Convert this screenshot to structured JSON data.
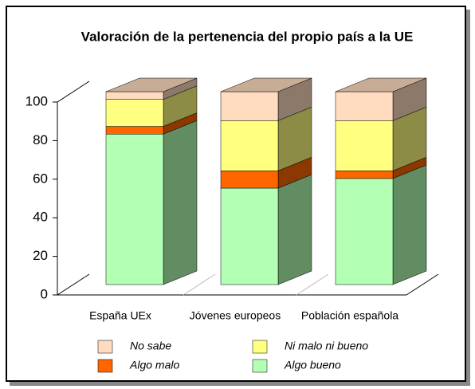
{
  "chart_data": {
    "type": "bar3d_stacked",
    "title": "Valoración de la pertenencia del propio país a la UE",
    "categories": [
      "España UEx",
      "Jóvenes europeos",
      "Población española"
    ],
    "series": [
      {
        "name": "Algo bueno",
        "color": "#b3ffb3",
        "values": [
          78,
          50,
          55
        ]
      },
      {
        "name": "Algo malo",
        "color": "#ff6600",
        "values": [
          4,
          9,
          4
        ]
      },
      {
        "name": "Ni malo ni bueno",
        "color": "#ffff80",
        "values": [
          14,
          26,
          26
        ]
      },
      {
        "name": "No sabe",
        "color": "#ffdcc0",
        "values": [
          4,
          15,
          15
        ]
      }
    ],
    "ylim": [
      0,
      100
    ],
    "yticks": [
      0,
      20,
      40,
      60,
      80,
      100
    ]
  }
}
